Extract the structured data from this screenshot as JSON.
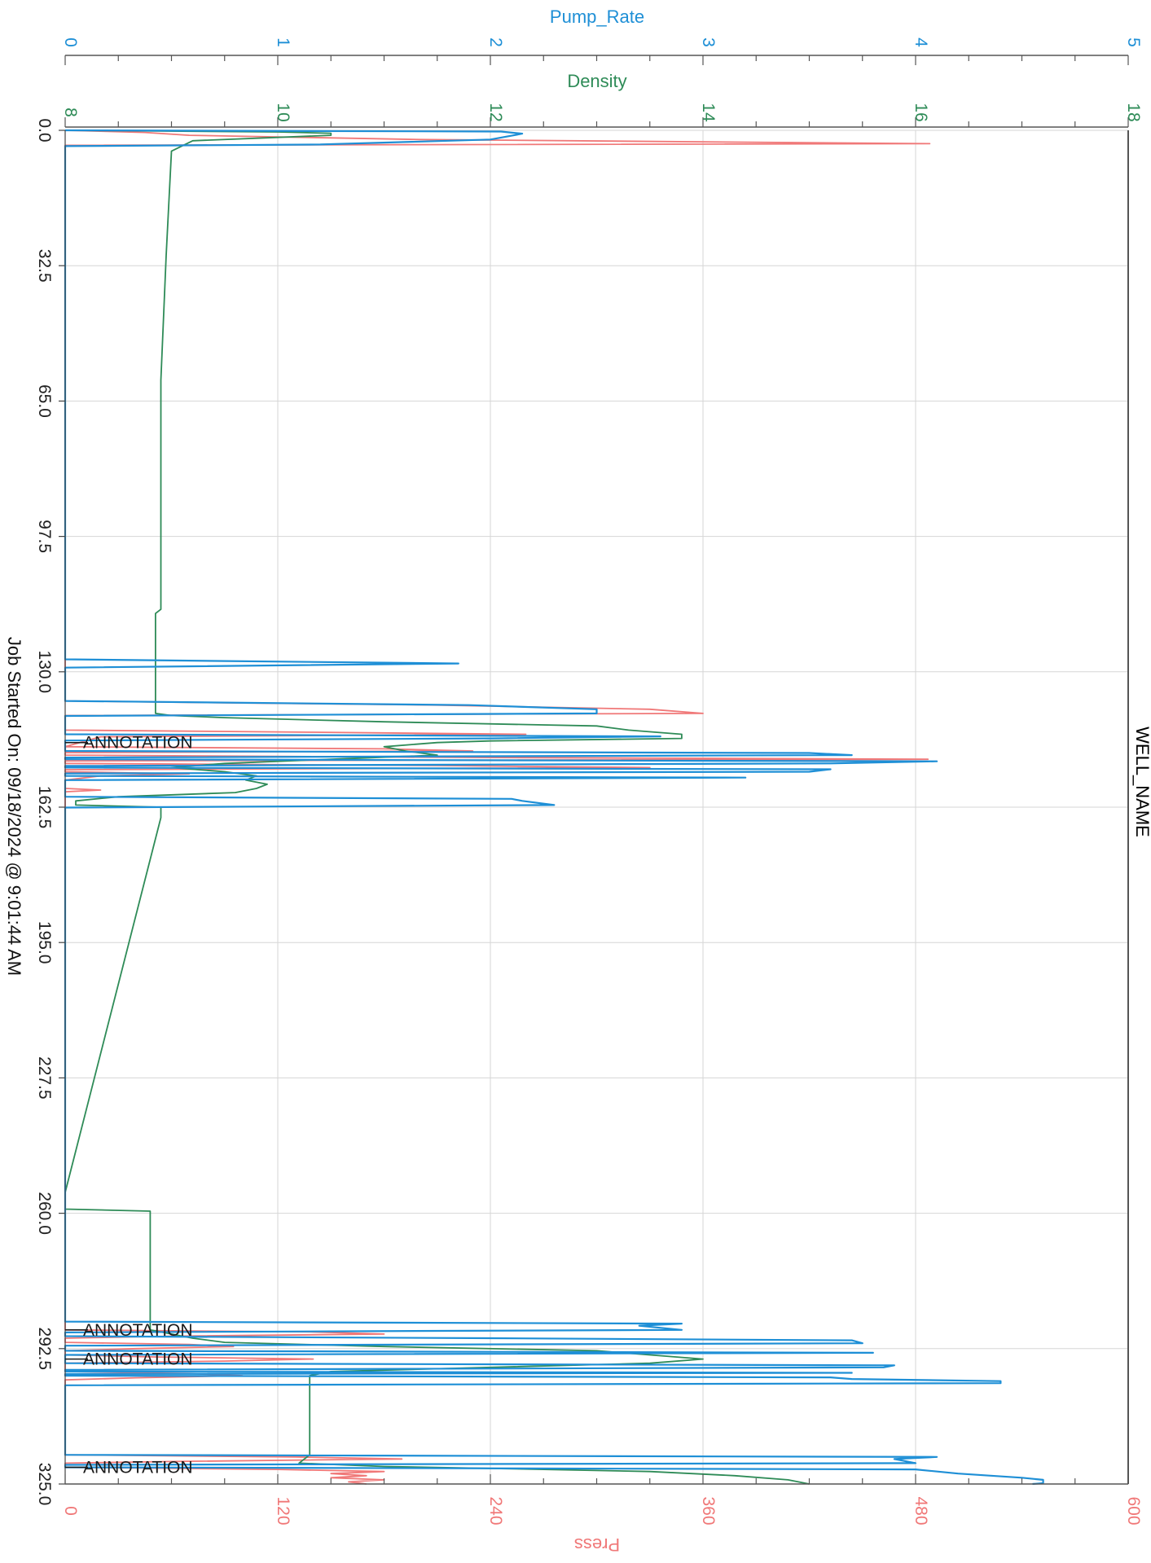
{
  "chart_data": {
    "type": "line",
    "orientation": "rotated",
    "well_name": "WELL_NAME",
    "footer": "Job Started On: 09/18/2024 @ 9:01:44 AM",
    "time_axis": {
      "range": [
        0,
        325
      ],
      "ticks": [
        "0.0",
        "32.5",
        "65.0",
        "97.5",
        "130.0",
        "162.5",
        "195.0",
        "227.5",
        "260.0",
        "292.5",
        "325.0"
      ]
    },
    "pump_rate_axis": {
      "label": "Pump_Rate",
      "range": [
        0,
        5
      ],
      "ticks": [
        "0",
        "1",
        "2",
        "3",
        "4",
        "5"
      ],
      "color": "#1e8fd6"
    },
    "density_axis": {
      "label": "Density",
      "range": [
        8,
        18
      ],
      "ticks": [
        "8",
        "10",
        "12",
        "14",
        "16",
        "18"
      ],
      "color": "#2e8b57"
    },
    "press_axis": {
      "label": "Press",
      "range": [
        0,
        600
      ],
      "ticks": [
        "0",
        "120",
        "240",
        "360",
        "480",
        "600"
      ],
      "color": "#f07878"
    },
    "annotations": [
      {
        "t": 147,
        "text": "ANNOTATION"
      },
      {
        "t": 288,
        "text": "ANNOTATION"
      },
      {
        "t": 295,
        "text": "ANNOTATION"
      },
      {
        "t": 321,
        "text": "ANNOTATION"
      }
    ],
    "series": [
      {
        "name": "Pump_Rate",
        "axis": "pump_rate",
        "color": "#1e8fd6",
        "points": [
          [
            0,
            0
          ],
          [
            0.3,
            2.05
          ],
          [
            0.8,
            2.15
          ],
          [
            1.3,
            2.1
          ],
          [
            2.2,
            2.0
          ],
          [
            3.4,
            1.2
          ],
          [
            3.8,
            0
          ],
          [
            127,
            0
          ],
          [
            128,
            1.85
          ],
          [
            129,
            0
          ],
          [
            137,
            0
          ],
          [
            138,
            1.9
          ],
          [
            139,
            2.5
          ],
          [
            140,
            2.5
          ],
          [
            140.6,
            0
          ],
          [
            145,
            0
          ],
          [
            145.5,
            2.8
          ],
          [
            146,
            2.0
          ],
          [
            146.5,
            0
          ],
          [
            149,
            0
          ],
          [
            149.5,
            3.5
          ],
          [
            150,
            3.7
          ],
          [
            150.6,
            0
          ],
          [
            151,
            0
          ],
          [
            151.5,
            4.1
          ],
          [
            152,
            3.6
          ],
          [
            152.6,
            0
          ],
          [
            153,
            0
          ],
          [
            153.4,
            3.6
          ],
          [
            154,
            3.5
          ],
          [
            154.4,
            0
          ],
          [
            155,
            0
          ],
          [
            155.4,
            3.2
          ],
          [
            156,
            0
          ],
          [
            160,
            0
          ],
          [
            160.5,
            2.1
          ],
          [
            161,
            2.15
          ],
          [
            162,
            2.3
          ],
          [
            162.6,
            0
          ],
          [
            286,
            0
          ],
          [
            286.5,
            2.9
          ],
          [
            287,
            2.7
          ],
          [
            288,
            2.9
          ],
          [
            288.6,
            0
          ],
          [
            289.5,
            0
          ],
          [
            290,
            2.0
          ],
          [
            290.5,
            3.7
          ],
          [
            291.2,
            3.75
          ],
          [
            291.8,
            0
          ],
          [
            293,
            0
          ],
          [
            293.5,
            3.8
          ],
          [
            294,
            0
          ],
          [
            296,
            0
          ],
          [
            296.5,
            3.9
          ],
          [
            297,
            3.85
          ],
          [
            297.6,
            0
          ],
          [
            298,
            0
          ],
          [
            298.3,
            3.7
          ],
          [
            298.6,
            0
          ],
          [
            299,
            0
          ],
          [
            299.4,
            3.6
          ],
          [
            299.8,
            3.7
          ],
          [
            300.3,
            4.4
          ],
          [
            300.8,
            4.4
          ],
          [
            301.3,
            0
          ],
          [
            318,
            0
          ],
          [
            318.5,
            4.1
          ],
          [
            319,
            3.9
          ],
          [
            320,
            4.0
          ],
          [
            320.4,
            0
          ],
          [
            321,
            0
          ],
          [
            321.5,
            4.0
          ],
          [
            322.5,
            4.2
          ],
          [
            323.5,
            4.5
          ],
          [
            324,
            4.6
          ],
          [
            324.8,
            4.6
          ],
          [
            325,
            4.55
          ]
        ]
      },
      {
        "name": "Density",
        "axis": "density",
        "color": "#2e8b57",
        "points": [
          [
            0,
            8
          ],
          [
            0.4,
            10.0
          ],
          [
            0.7,
            10.5
          ],
          [
            1.2,
            10.5
          ],
          [
            2.5,
            9.2
          ],
          [
            5,
            9.0
          ],
          [
            30,
            8.95
          ],
          [
            60,
            8.9
          ],
          [
            100,
            8.9
          ],
          [
            115,
            8.9
          ],
          [
            116,
            8.85
          ],
          [
            135,
            8.85
          ],
          [
            140,
            8.85
          ],
          [
            140.5,
            9.0
          ],
          [
            141,
            9.5
          ],
          [
            142,
            11.0
          ],
          [
            143,
            13.0
          ],
          [
            144,
            13.3
          ],
          [
            145,
            13.8
          ],
          [
            146,
            13.8
          ],
          [
            146.6,
            12.0
          ],
          [
            147,
            11.5
          ],
          [
            148,
            11.0
          ],
          [
            149,
            11.2
          ],
          [
            150,
            11.5
          ],
          [
            151,
            10.5
          ],
          [
            152,
            9.5
          ],
          [
            153,
            9.0
          ],
          [
            154,
            9.5
          ],
          [
            155,
            9.8
          ],
          [
            156,
            9.7
          ],
          [
            157,
            9.9
          ],
          [
            158,
            9.8
          ],
          [
            159,
            9.6
          ],
          [
            160,
            8.5
          ],
          [
            161,
            8.1
          ],
          [
            162,
            8.1
          ],
          [
            162.5,
            8.9
          ],
          [
            165,
            8.9
          ],
          [
            255,
            8.0
          ],
          [
            259,
            8.0
          ],
          [
            259.5,
            8.8
          ],
          [
            261,
            8.8
          ],
          [
            286,
            8.8
          ],
          [
            288,
            8.8
          ],
          [
            290,
            9.2
          ],
          [
            291,
            9.5
          ],
          [
            292,
            11.0
          ],
          [
            293,
            13.0
          ],
          [
            294,
            13.5
          ],
          [
            295,
            14.0
          ],
          [
            296,
            13.5
          ],
          [
            297,
            12.0
          ],
          [
            298,
            10.5
          ],
          [
            299,
            10.3
          ],
          [
            300,
            10.3
          ],
          [
            318,
            10.3
          ],
          [
            320,
            10.2
          ],
          [
            320.8,
            11.0
          ],
          [
            321.5,
            12.5
          ],
          [
            322,
            13.5
          ],
          [
            323,
            14.3
          ],
          [
            324,
            14.8
          ],
          [
            325,
            15.0
          ]
        ]
      },
      {
        "name": "Press",
        "axis": "press",
        "color": "#f07878",
        "points": [
          [
            0,
            0
          ],
          [
            0.5,
            45
          ],
          [
            1.2,
            70
          ],
          [
            2.2,
            200
          ],
          [
            3.2,
            488
          ],
          [
            3.6,
            0
          ],
          [
            137,
            0
          ],
          [
            137.5,
            105
          ],
          [
            138,
            210
          ],
          [
            139,
            330
          ],
          [
            140,
            360
          ],
          [
            140.5,
            0
          ],
          [
            144,
            0
          ],
          [
            144.5,
            140
          ],
          [
            145,
            260
          ],
          [
            145.6,
            20
          ],
          [
            148,
            0
          ],
          [
            148.5,
            180
          ],
          [
            149,
            230
          ],
          [
            149.4,
            0
          ],
          [
            150,
            0
          ],
          [
            150.5,
            190
          ],
          [
            151,
            487
          ],
          [
            151.4,
            0
          ],
          [
            152,
            0
          ],
          [
            152.5,
            210
          ],
          [
            153,
            330
          ],
          [
            153.5,
            0
          ],
          [
            154,
            0
          ],
          [
            154.5,
            70
          ],
          [
            155,
            20
          ],
          [
            156,
            0
          ],
          [
            158,
            0
          ],
          [
            158.4,
            20
          ],
          [
            158.8,
            0
          ],
          [
            288,
            0
          ],
          [
            288.5,
            140
          ],
          [
            289,
            180
          ],
          [
            289.5,
            60
          ],
          [
            290,
            0
          ],
          [
            291,
            0
          ],
          [
            291.5,
            70
          ],
          [
            292,
            95
          ],
          [
            292.5,
            40
          ],
          [
            293,
            0
          ],
          [
            294,
            0
          ],
          [
            294.5,
            50
          ],
          [
            295,
            140
          ],
          [
            295.5,
            90
          ],
          [
            296,
            0
          ],
          [
            298,
            0
          ],
          [
            298.5,
            70
          ],
          [
            299,
            100
          ],
          [
            299.5,
            40
          ],
          [
            300,
            0
          ],
          [
            318,
            0
          ],
          [
            318.5,
            130
          ],
          [
            319,
            190
          ],
          [
            319.6,
            60
          ],
          [
            320,
            0
          ],
          [
            321,
            0
          ],
          [
            321.5,
            120
          ],
          [
            322,
            180
          ],
          [
            322.5,
            150
          ],
          [
            323,
            170
          ],
          [
            323.5,
            150
          ],
          [
            324,
            180
          ],
          [
            324.5,
            160
          ],
          [
            325,
            170
          ]
        ]
      }
    ]
  }
}
